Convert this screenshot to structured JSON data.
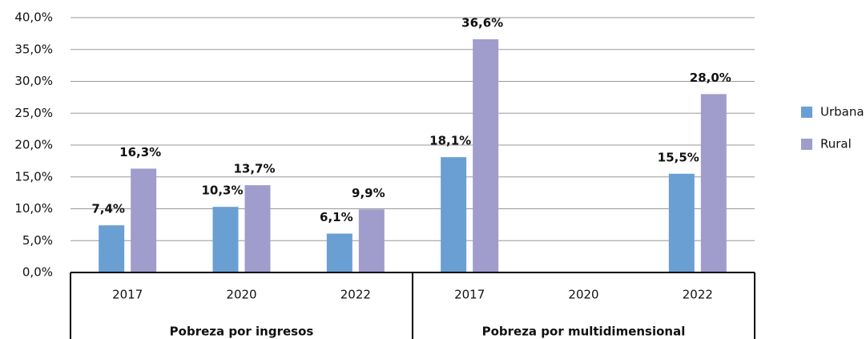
{
  "chart_data": {
    "type": "bar",
    "categories": [
      "2017",
      "2020",
      "2022",
      "2017",
      "2020",
      "2022"
    ],
    "category_groups": [
      "Pobreza por ingresos",
      "Pobreza por multidimensional"
    ],
    "series": [
      {
        "name": "Urbana",
        "color": "#6a9fd4",
        "values": [
          7.4,
          10.3,
          6.1,
          18.1,
          null,
          15.5
        ],
        "value_labels": [
          "7,4%",
          "10,3%",
          "6,1%",
          "18,1%",
          null,
          "15,5%"
        ]
      },
      {
        "name": "Rural",
        "color": "#a09ccc",
        "values": [
          16.3,
          13.7,
          9.9,
          36.6,
          null,
          28.0
        ],
        "value_labels": [
          "16,3%",
          "13,7%",
          "9,9%",
          "36,6%",
          null,
          "28,0%"
        ]
      }
    ],
    "ylim": [
      0,
      40
    ],
    "yticks": [
      {
        "value": 0,
        "label": "0,0%"
      },
      {
        "value": 5,
        "label": "5,0%"
      },
      {
        "value": 10,
        "label": "10,0%"
      },
      {
        "value": 15,
        "label": "15,0%"
      },
      {
        "value": 20,
        "label": "20,0%"
      },
      {
        "value": 25,
        "label": "25,0%"
      },
      {
        "value": 30,
        "label": "30,0%"
      },
      {
        "value": 35,
        "label": "35,0%"
      },
      {
        "value": 40,
        "label": "40,0%"
      }
    ],
    "grid": true,
    "legend": "right"
  }
}
